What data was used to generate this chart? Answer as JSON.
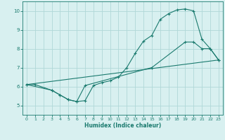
{
  "xlabel": "Humidex (Indice chaleur)",
  "bg_color": "#d8f0f0",
  "grid_color": "#b0d8d8",
  "line_color": "#1a7a6e",
  "xlim": [
    -0.5,
    23.5
  ],
  "ylim": [
    4.5,
    10.5
  ],
  "xticks": [
    0,
    1,
    2,
    3,
    4,
    5,
    6,
    7,
    8,
    9,
    10,
    11,
    12,
    13,
    14,
    15,
    16,
    17,
    18,
    19,
    20,
    21,
    22,
    23
  ],
  "yticks": [
    5,
    6,
    7,
    8,
    9,
    10
  ],
  "line1_x": [
    0,
    1,
    3,
    4,
    5,
    6,
    7,
    8,
    9,
    10,
    11,
    12,
    13,
    14,
    15,
    16,
    17,
    18,
    19,
    20,
    21,
    22,
    23
  ],
  "line1_y": [
    6.1,
    6.1,
    5.8,
    5.55,
    5.3,
    5.2,
    5.25,
    6.05,
    6.2,
    6.3,
    6.5,
    7.0,
    7.75,
    8.4,
    8.7,
    9.55,
    9.85,
    10.05,
    10.1,
    10.0,
    8.5,
    8.0,
    7.4
  ],
  "line2_x": [
    0,
    3,
    4,
    5,
    6,
    7,
    15,
    19,
    20,
    21,
    22,
    23
  ],
  "line2_y": [
    6.1,
    5.8,
    5.55,
    5.3,
    5.2,
    6.05,
    7.0,
    8.35,
    8.35,
    8.0,
    8.0,
    7.4
  ],
  "line3_x": [
    0,
    23
  ],
  "line3_y": [
    6.1,
    7.4
  ]
}
